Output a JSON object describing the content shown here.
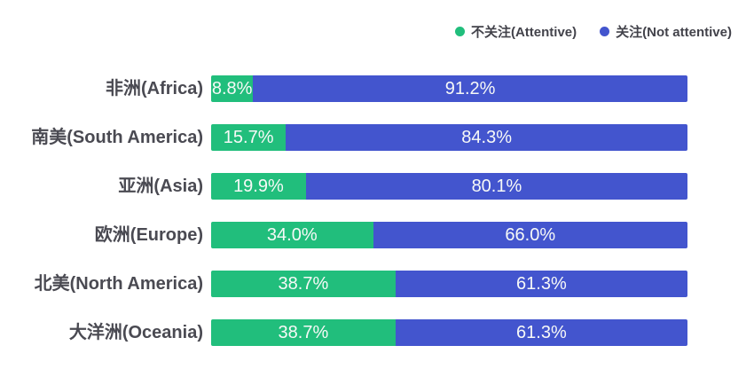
{
  "chart_data": {
    "type": "bar",
    "orientation": "horizontal",
    "stacked": true,
    "title": "",
    "xlabel": "",
    "ylabel": "",
    "xlim": [
      0,
      100
    ],
    "grid": false,
    "unit": "%",
    "legend_position": "top-right",
    "categories": [
      "非洲(Africa)",
      "南美(South America)",
      "亚洲(Asia)",
      "欧洲(Europe)",
      "北美(North America)",
      "大洋洲(Oceania)"
    ],
    "series": [
      {
        "name": "不关注(Attentive)",
        "color": "#21be7c",
        "values": [
          8.8,
          15.7,
          19.9,
          34.0,
          38.7,
          38.7
        ]
      },
      {
        "name": "关注(Not attentive)",
        "color": "#4355ce",
        "values": [
          91.2,
          84.3,
          80.1,
          66.0,
          61.3,
          61.3
        ]
      }
    ],
    "value_labels": [
      [
        "8.8%",
        "91.2%"
      ],
      [
        "15.7%",
        "84.3%"
      ],
      [
        "19.9%",
        "80.1%"
      ],
      [
        "34.0%",
        "66.0%"
      ],
      [
        "38.7%",
        "61.3%"
      ],
      [
        "38.7%",
        "61.3%"
      ]
    ]
  }
}
